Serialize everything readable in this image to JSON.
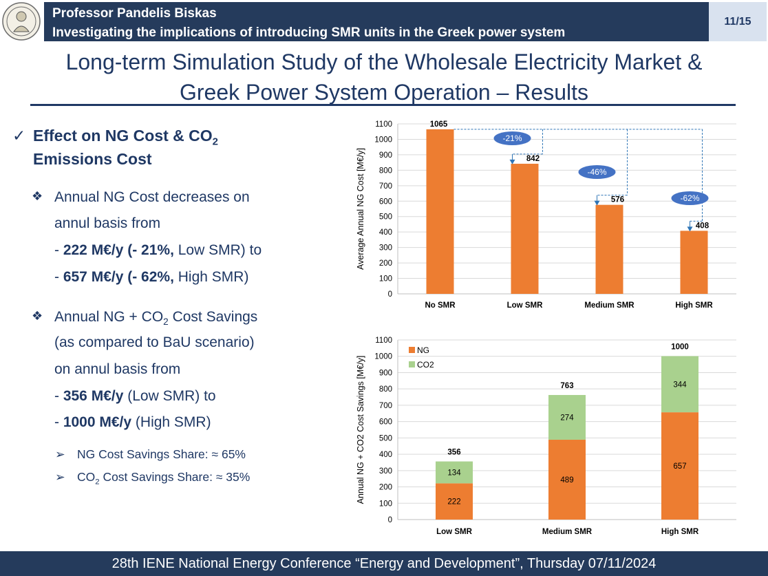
{
  "header": {
    "name": "Professor Pandelis Biskas",
    "topic": "Investigating the implications of introducing SMR units in the Greek power system",
    "page": "11/15"
  },
  "title": {
    "line1": "Long-term Simulation Study of the Wholesale Electricity Market &",
    "line2": "Greek Power System Operation – Results"
  },
  "content": {
    "heading_a": "Effect on NG Cost & CO",
    "heading_sub": "2",
    "heading_b": "Emissions Cost",
    "b1_l1": "Annual NG Cost decreases on",
    "b1_l2": "annul basis from",
    "b1_l3_dash": "- ",
    "b1_l3_bold": "222 M€/y (- 21%,",
    "b1_l3_rest": " Low SMR) to",
    "b1_l4_dash": "- ",
    "b1_l4_bold": "657 M€/y (- 62%,",
    "b1_l4_rest": " High SMR)",
    "b2_l1_a": "Annual NG + CO",
    "b2_l1_sub": "2",
    "b2_l1_b": " Cost Savings",
    "b2_l2": "(as compared to BaU scenario)",
    "b2_l3": "on annul basis from",
    "b2_l4_dash": "- ",
    "b2_l4_bold": "356 M€/y",
    "b2_l4_rest": " (Low SMR) to",
    "b2_l5_dash": "- ",
    "b2_l5_bold": "1000 M€/y",
    "b2_l5_rest": " (High SMR)",
    "s1": "NG Cost Savings Share: ≈ 65%",
    "s2_a": "CO",
    "s2_sub": "2",
    "s2_b": " Cost Savings Share: ≈ 35%"
  },
  "chart_data": [
    {
      "type": "bar",
      "categories": [
        "No SMR",
        "Low SMR",
        "Medium SMR",
        "High SMR"
      ],
      "values": [
        1065,
        842,
        576,
        408
      ],
      "ylabel": "Average Annual NG Cost [M€/y]",
      "ylim": [
        0,
        1100
      ],
      "yticks": [
        0,
        100,
        200,
        300,
        400,
        500,
        600,
        700,
        800,
        900,
        1000,
        1100
      ],
      "grid": true,
      "annotations": [
        "-21%",
        "-46%",
        "-62%"
      ],
      "color": "#ed7d31"
    },
    {
      "type": "bar",
      "stacked": true,
      "categories": [
        "Low SMR",
        "Medium SMR",
        "High SMR"
      ],
      "series": [
        {
          "name": "NG",
          "values": [
            222,
            489,
            657
          ],
          "color": "#ed7d31"
        },
        {
          "name": "CO2",
          "values": [
            134,
            274,
            344
          ],
          "color": "#a9d18e"
        }
      ],
      "totals": [
        356,
        763,
        1000
      ],
      "ylabel": "Annual NG + CO2 Cost Savings [M€/y]",
      "ylim": [
        0,
        1100
      ],
      "yticks": [
        0,
        100,
        200,
        300,
        400,
        500,
        600,
        700,
        800,
        900,
        1000,
        1100
      ],
      "grid": true,
      "legend": "top-left"
    }
  ],
  "footer": {
    "text": "28th IENE National Energy Conference “Energy and Development”, Thursday 07/11/2024"
  }
}
